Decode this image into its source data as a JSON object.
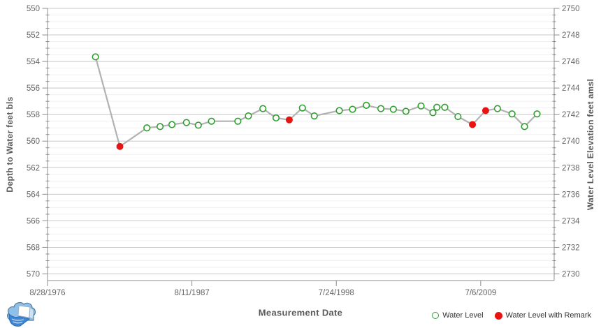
{
  "chart": {
    "x_axis_title": "Measurement Date",
    "left_axis_title": "Depth to Water feet bls",
    "right_axis_title": "Water Level Elevation feet amsl"
  },
  "legend": {
    "items": [
      {
        "label": "Water Level",
        "marker": "green-open-circle"
      },
      {
        "label": "Water Level with Remark",
        "marker": "red-filled-circle"
      }
    ]
  },
  "colors": {
    "water_level_marker": "#2f9e2f",
    "remark_marker": "#e81414",
    "line": "#b2b2b2",
    "grid_major": "#c8c8c8",
    "grid_minor": "#f1f0f4",
    "axis_line": "#8c8c8c",
    "tick_label": "#666666",
    "axis_title": "#595959"
  },
  "chart_data": {
    "type": "line",
    "title": "",
    "xlabel": "Measurement Date",
    "ylabel_left": "Depth to Water feet bls",
    "ylabel_right": "Water Level Elevation feet amsl",
    "grid": "major-and-minor",
    "legend_position": "bottom-right",
    "x_tick_labels": [
      "8/28/1976",
      "8/11/1987",
      "7/24/1998",
      "7/6/2009"
    ],
    "x_tick_years": [
      1976.66,
      1987.615,
      1998.57,
      2009.525
    ],
    "x_range_years": [
      1976.66,
      2015.1
    ],
    "y_left_ticks": [
      550,
      552,
      554,
      556,
      558,
      560,
      562,
      564,
      566,
      568,
      570
    ],
    "y_left_range": [
      550,
      570.5
    ],
    "y_right_ticks": [
      2750,
      2748,
      2746,
      2744,
      2742,
      2740,
      2738,
      2736,
      2734,
      2732,
      2730
    ],
    "y_axes_relation": "elevation_feet_amsl = 3300 - depth_feet_bls",
    "series": [
      {
        "name": "Water Level (red = with remark)",
        "points": [
          {
            "x": 1980.3,
            "depth": 553.65,
            "remark": false
          },
          {
            "x": 1982.15,
            "depth": 560.4,
            "remark": true
          },
          {
            "x": 1984.2,
            "depth": 559.0,
            "remark": false
          },
          {
            "x": 1985.2,
            "depth": 558.9,
            "remark": false
          },
          {
            "x": 1986.1,
            "depth": 558.75,
            "remark": false
          },
          {
            "x": 1987.2,
            "depth": 558.6,
            "remark": false
          },
          {
            "x": 1988.1,
            "depth": 558.8,
            "remark": false
          },
          {
            "x": 1989.1,
            "depth": 558.5,
            "remark": false
          },
          {
            "x": 1991.1,
            "depth": 558.5,
            "remark": false
          },
          {
            "x": 1991.9,
            "depth": 558.1,
            "remark": false
          },
          {
            "x": 1993.0,
            "depth": 557.55,
            "remark": false
          },
          {
            "x": 1994.0,
            "depth": 558.25,
            "remark": false
          },
          {
            "x": 1995.0,
            "depth": 558.4,
            "remark": true
          },
          {
            "x": 1996.0,
            "depth": 557.5,
            "remark": false
          },
          {
            "x": 1996.9,
            "depth": 558.1,
            "remark": false
          },
          {
            "x": 1998.8,
            "depth": 557.7,
            "remark": false
          },
          {
            "x": 1999.8,
            "depth": 557.6,
            "remark": false
          },
          {
            "x": 2000.85,
            "depth": 557.3,
            "remark": false
          },
          {
            "x": 2001.95,
            "depth": 557.55,
            "remark": false
          },
          {
            "x": 2002.9,
            "depth": 557.6,
            "remark": false
          },
          {
            "x": 2003.85,
            "depth": 557.75,
            "remark": false
          },
          {
            "x": 2005.0,
            "depth": 557.35,
            "remark": false
          },
          {
            "x": 2005.9,
            "depth": 557.85,
            "remark": false
          },
          {
            "x": 2006.2,
            "depth": 557.45,
            "remark": false
          },
          {
            "x": 2006.8,
            "depth": 557.45,
            "remark": false
          },
          {
            "x": 2007.8,
            "depth": 558.15,
            "remark": false
          },
          {
            "x": 2008.9,
            "depth": 558.75,
            "remark": true
          },
          {
            "x": 2009.9,
            "depth": 557.7,
            "remark": true
          },
          {
            "x": 2010.8,
            "depth": 557.55,
            "remark": false
          },
          {
            "x": 2011.9,
            "depth": 557.95,
            "remark": false
          },
          {
            "x": 2012.85,
            "depth": 558.9,
            "remark": false
          },
          {
            "x": 2013.8,
            "depth": 557.95,
            "remark": false
          }
        ]
      }
    ]
  }
}
